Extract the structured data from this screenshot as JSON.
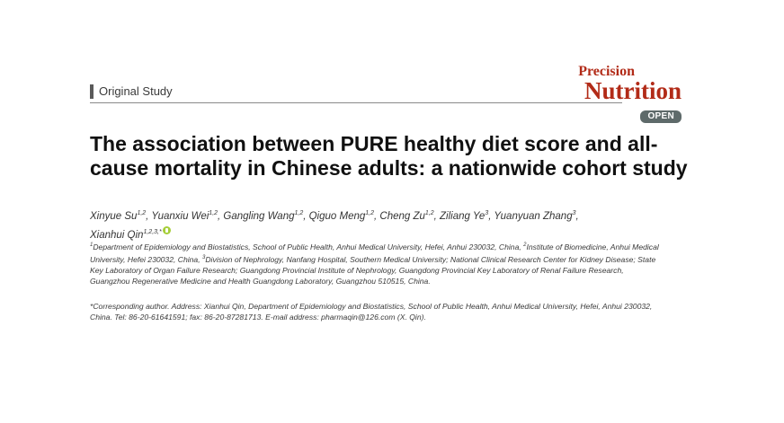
{
  "header": {
    "section_label": "Original Study",
    "journal_name_line1": "Precision",
    "journal_name_line2": "Nutrition",
    "access_badge": "OPEN"
  },
  "article": {
    "title": "The association between PURE healthy diet score and all-cause mortality in Chinese adults: a nationwide cohort study",
    "authors": [
      {
        "name": "Xinyue Su",
        "sup": "1,2"
      },
      {
        "name": "Yuanxiu Wei",
        "sup": "1,2"
      },
      {
        "name": "Gangling Wang",
        "sup": "1,2"
      },
      {
        "name": "Qiguo Meng",
        "sup": "1,2"
      },
      {
        "name": "Cheng Zu",
        "sup": "1,2"
      },
      {
        "name": "Ziliang Ye",
        "sup": "3"
      },
      {
        "name": "Yuanyuan Zhang",
        "sup": "3"
      },
      {
        "name": "Xianhui Qin",
        "sup": "1,2,3,"
      }
    ],
    "corresponding_marker": "*",
    "affiliations": [
      {
        "sup": "1",
        "text": "Department of Epidemiology and Biostatistics, School of Public Health, Anhui Medical University, Hefei, Anhui 230032, China, "
      },
      {
        "sup": "2",
        "text": "Institute of Biomedicine, Anhui Medical University, Hefei 230032, China, "
      },
      {
        "sup": "3",
        "text": "Division of Nephrology, Nanfang Hospital, Southern Medical University; National Clinical Research Center for Kidney Disease; State Key Laboratory of Organ Failure Research; Guangdong Provincial Institute of Nephrology, Guangdong Provincial Key Laboratory of Renal Failure Research, Guangzhou Regenerative Medicine and Health Guangdong Laboratory, Guangzhou 510515, China."
      }
    ],
    "correspondence": "*Corresponding author. Address: Xianhui Qin, Department of Epidemiology and Biostatistics, School of Public Health, Anhui Medical University, Hefei, Anhui 230032, China. Tel: 86-20-61641591; fax: 86-20-87281713. E-mail address: pharmaqin@126.com (X. Qin)."
  },
  "colors": {
    "journal_brand": "#b22b18",
    "badge_background": "#5e6a6a",
    "orcid_green": "#a6ce39"
  },
  "icons": {
    "orcid": "orcid-icon"
  }
}
